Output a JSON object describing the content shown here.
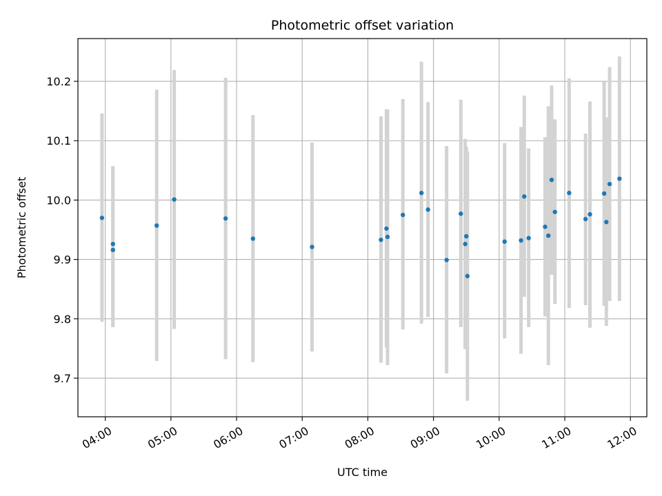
{
  "chart_data": {
    "type": "scatter",
    "title": "Photometric offset variation",
    "xlabel": "UTC time",
    "ylabel": "Photometric offset",
    "x_unit": "time (HH:MM UTC)",
    "xlim": [
      "03:35",
      "12:15"
    ],
    "ylim": [
      9.635,
      10.272
    ],
    "grid": true,
    "x_ticks": [
      "04:00",
      "05:00",
      "06:00",
      "07:00",
      "08:00",
      "09:00",
      "10:00",
      "11:00",
      "12:00"
    ],
    "y_ticks": [
      9.7,
      9.8,
      9.9,
      10.0,
      10.1,
      10.2
    ],
    "y_tick_labels": [
      "9.7",
      "9.8",
      "9.9",
      "10.0",
      "10.1",
      "10.2"
    ],
    "colors": {
      "marker": "#1f77b4",
      "errorbar": "#d3d3d3",
      "grid": "#b0b0b0"
    },
    "points": [
      {
        "x": "03:57",
        "y": 9.97,
        "ylow": 9.795,
        "yhigh": 10.146
      },
      {
        "x": "04:07",
        "y": 9.926,
        "ylow": 9.786,
        "yhigh": 10.057
      },
      {
        "x": "04:07",
        "y": 9.916,
        "ylow": 9.786,
        "yhigh": 10.057
      },
      {
        "x": "04:47",
        "y": 9.957,
        "ylow": 9.729,
        "yhigh": 10.186
      },
      {
        "x": "05:03",
        "y": 10.001,
        "ylow": 9.783,
        "yhigh": 10.219
      },
      {
        "x": "05:50",
        "y": 9.969,
        "ylow": 9.732,
        "yhigh": 10.206
      },
      {
        "x": "06:15",
        "y": 9.935,
        "ylow": 9.727,
        "yhigh": 10.143
      },
      {
        "x": "07:09",
        "y": 9.921,
        "ylow": 9.745,
        "yhigh": 10.097
      },
      {
        "x": "08:12",
        "y": 9.933,
        "ylow": 9.726,
        "yhigh": 10.141
      },
      {
        "x": "08:17",
        "y": 9.952,
        "ylow": 9.752,
        "yhigh": 10.153
      },
      {
        "x": "08:18",
        "y": 9.938,
        "ylow": 9.722,
        "yhigh": 10.152
      },
      {
        "x": "08:32",
        "y": 9.975,
        "ylow": 9.782,
        "yhigh": 10.17
      },
      {
        "x": "08:49",
        "y": 10.012,
        "ylow": 9.792,
        "yhigh": 10.233
      },
      {
        "x": "08:55",
        "y": 9.984,
        "ylow": 9.803,
        "yhigh": 10.165
      },
      {
        "x": "09:12",
        "y": 9.899,
        "ylow": 9.708,
        "yhigh": 10.091
      },
      {
        "x": "09:25",
        "y": 9.977,
        "ylow": 9.786,
        "yhigh": 10.169
      },
      {
        "x": "09:29",
        "y": 9.926,
        "ylow": 9.749,
        "yhigh": 10.103
      },
      {
        "x": "09:30",
        "y": 9.939,
        "ylow": 9.751,
        "yhigh": 10.09
      },
      {
        "x": "09:31",
        "y": 9.872,
        "ylow": 9.662,
        "yhigh": 10.082
      },
      {
        "x": "10:05",
        "y": 9.93,
        "ylow": 9.767,
        "yhigh": 10.096
      },
      {
        "x": "10:20",
        "y": 9.932,
        "ylow": 9.741,
        "yhigh": 10.123
      },
      {
        "x": "10:23",
        "y": 10.006,
        "ylow": 9.837,
        "yhigh": 10.176
      },
      {
        "x": "10:27",
        "y": 9.936,
        "ylow": 9.786,
        "yhigh": 10.087
      },
      {
        "x": "10:42",
        "y": 9.955,
        "ylow": 9.804,
        "yhigh": 10.106
      },
      {
        "x": "10:45",
        "y": 9.94,
        "ylow": 9.722,
        "yhigh": 10.158
      },
      {
        "x": "10:48",
        "y": 10.034,
        "ylow": 9.874,
        "yhigh": 10.193
      },
      {
        "x": "10:51",
        "y": 9.98,
        "ylow": 9.825,
        "yhigh": 10.136
      },
      {
        "x": "11:04",
        "y": 10.012,
        "ylow": 9.818,
        "yhigh": 10.205
      },
      {
        "x": "11:19",
        "y": 9.968,
        "ylow": 9.823,
        "yhigh": 10.112
      },
      {
        "x": "11:23",
        "y": 9.976,
        "ylow": 9.785,
        "yhigh": 10.166
      },
      {
        "x": "11:36",
        "y": 10.011,
        "ylow": 9.822,
        "yhigh": 10.199
      },
      {
        "x": "11:38",
        "y": 9.963,
        "ylow": 9.788,
        "yhigh": 10.139
      },
      {
        "x": "11:41",
        "y": 10.027,
        "ylow": 9.83,
        "yhigh": 10.224
      },
      {
        "x": "11:50",
        "y": 10.036,
        "ylow": 9.83,
        "yhigh": 10.242
      }
    ]
  }
}
